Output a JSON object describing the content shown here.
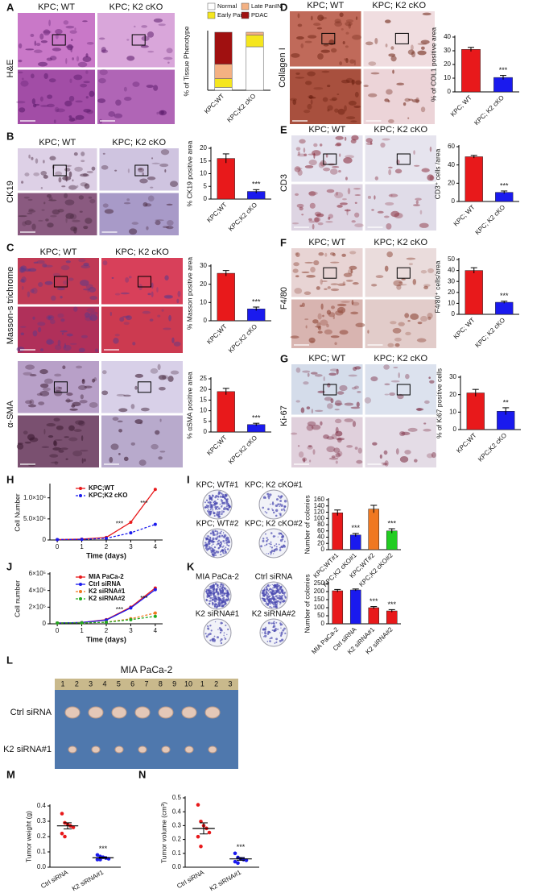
{
  "panel_labels": [
    "A",
    "B",
    "C",
    "D",
    "E",
    "F",
    "G",
    "H",
    "I",
    "J",
    "K",
    "L",
    "M",
    "N"
  ],
  "image_panels": [
    {
      "columns": [
        "KPC; WT",
        "KPC; K2 cKO"
      ],
      "rows": [
        "H&E"
      ]
    },
    {
      "columns": [
        "KPC; WT",
        "KPC; K2 cKO"
      ],
      "rows": [
        "CK19"
      ]
    },
    {
      "columns": [
        "KPC; WT",
        "KPC; K2 cKO"
      ],
      "rows": [
        "Masson-s trichrome"
      ]
    },
    {
      "rows": [
        "α-SMA"
      ]
    },
    {
      "columns": [
        "KPC; WT",
        "KPC; K2 cKO"
      ],
      "rows": [
        "Collagen I"
      ]
    },
    {
      "columns": [
        "KPC; WT",
        "KPC; K2 cKO"
      ],
      "rows": [
        "CD3"
      ]
    },
    {
      "columns": [
        "KPC; WT",
        "KPC; K2 cKO"
      ],
      "rows": [
        "F4/80"
      ]
    },
    {
      "columns": [
        "KPC; WT",
        "KPC; K2 cKO"
      ],
      "rows": [
        "Ki-67"
      ]
    },
    {
      "columns": [
        "KPC; WT#1",
        "KPC; K2 cKO#1",
        "KPC; WT#2",
        "KPC; K2 cKO#2"
      ]
    },
    {
      "columns": [
        "MIA PaCa-2",
        "Ctrl siRNA",
        "K2 siRNA#1",
        "K2 siRNA#2"
      ]
    },
    {
      "title": "MIA PaCa-2",
      "rows": [
        "Ctrl siRNA",
        "K2 siRNA#1"
      ],
      "ruler": [
        "1",
        "2",
        "3",
        "4",
        "5",
        "6",
        "7",
        "8",
        "9",
        "10",
        "1",
        "2",
        "3"
      ]
    }
  ],
  "chart_data": [
    {
      "type": "stacked_bar",
      "categories": [
        "KPC;WT",
        "KPC;K2 cKO"
      ],
      "y_label": "% of Tissue Phenotype",
      "ylim": [
        0,
        100
      ],
      "series": [
        {
          "name": "Normal",
          "color": "#ffffff",
          "values": [
            5,
            75
          ]
        },
        {
          "name": "Early PanIN",
          "color": "#f5e61e",
          "values": [
            15,
            20
          ]
        },
        {
          "name": "Late PanIN",
          "color": "#f4b183",
          "values": [
            25,
            5
          ]
        },
        {
          "name": "PDAC",
          "color": "#a01010",
          "values": [
            55,
            0
          ]
        }
      ]
    },
    {
      "type": "bar",
      "categories": [
        "KPC;WT",
        "KPC;K2 cKO"
      ],
      "values": [
        16,
        3
      ],
      "errors": [
        1.8,
        0.7
      ],
      "colors": [
        "#e8191b",
        "#1a1aee"
      ],
      "annotations": [
        null,
        "***"
      ],
      "y_label": "% CK19 positive area",
      "ylim": [
        0,
        20
      ],
      "yticks": [
        0,
        5,
        10,
        15,
        20
      ]
    },
    {
      "type": "bar",
      "categories": [
        "KPC;WT",
        "KPC;K2 cKO"
      ],
      "values": [
        26,
        6.5
      ],
      "errors": [
        1.5,
        1
      ],
      "colors": [
        "#e8191b",
        "#1a1aee"
      ],
      "annotations": [
        null,
        "***"
      ],
      "y_label": "% Masson positive area",
      "ylim": [
        0,
        30
      ],
      "yticks": [
        0,
        10,
        20,
        30
      ]
    },
    {
      "type": "bar",
      "categories": [
        "KPC;WT",
        "KPC;K2 cKO"
      ],
      "values": [
        19,
        3.5
      ],
      "errors": [
        1.5,
        0.6
      ],
      "colors": [
        "#e8191b",
        "#1a1aee"
      ],
      "annotations": [
        null,
        "***"
      ],
      "y_label": "% αSMA positive area",
      "ylim": [
        0,
        25
      ],
      "yticks": [
        0,
        5,
        10,
        15,
        20,
        25
      ]
    },
    {
      "type": "bar",
      "categories": [
        "KPC; WT",
        "KPC; K2 cKO"
      ],
      "values": [
        31,
        10.5
      ],
      "errors": [
        1.5,
        1.5
      ],
      "colors": [
        "#e8191b",
        "#1a1aee"
      ],
      "annotations": [
        null,
        "***"
      ],
      "y_label": "% of COL1 positive area",
      "ylim": [
        0,
        40
      ],
      "yticks": [
        0,
        10,
        20,
        30,
        40
      ]
    },
    {
      "type": "bar",
      "categories": [
        "KPC; WT",
        "KPC; K2 cKO"
      ],
      "values": [
        49,
        10
      ],
      "errors": [
        1.5,
        1.5
      ],
      "colors": [
        "#e8191b",
        "#1a1aee"
      ],
      "annotations": [
        null,
        "***"
      ],
      "y_label": "CD3⁺ cells /area",
      "ylim": [
        0,
        60
      ],
      "yticks": [
        0,
        20,
        40,
        60
      ]
    },
    {
      "type": "bar",
      "categories": [
        "KPC; WT",
        "KPC; K2 cKO"
      ],
      "values": [
        40,
        11
      ],
      "errors": [
        2.5,
        1
      ],
      "colors": [
        "#e8191b",
        "#1a1aee"
      ],
      "annotations": [
        null,
        "***"
      ],
      "y_label": "F4/80⁺ cells/area",
      "ylim": [
        0,
        50
      ],
      "yticks": [
        0,
        10,
        20,
        30,
        40,
        50
      ]
    },
    {
      "type": "bar",
      "categories": [
        "KPC;WT",
        "KPC;K2 cKO"
      ],
      "values": [
        21,
        10.5
      ],
      "errors": [
        2,
        2
      ],
      "colors": [
        "#e8191b",
        "#1a1aee"
      ],
      "annotations": [
        null,
        "**"
      ],
      "y_label": "% of Ki67 positive cells",
      "ylim": [
        0,
        30
      ],
      "yticks": [
        0,
        10,
        20,
        30
      ]
    },
    {
      "type": "line",
      "x": [
        0,
        1,
        2,
        3,
        4
      ],
      "xlim": [
        -0.3,
        4.3
      ],
      "xticks": [
        0,
        1,
        2,
        3,
        4
      ],
      "x_label": "Time (days)",
      "y_label": "Cell Number",
      "ylim": [
        0,
        1300000
      ],
      "yticks": [
        0,
        {
          "value": 500000,
          "label": "5.0×10⁵"
        },
        {
          "value": 1000000,
          "label": "1.0×10⁶"
        }
      ],
      "series": [
        {
          "name": "KPC;WT",
          "color": "#e8191b",
          "values": [
            10000,
            20000,
            60000,
            420000,
            1200000
          ]
        },
        {
          "name": "KPC;K2 cKO",
          "color": "#1a1aee",
          "dashed": true,
          "values": [
            10000,
            15000,
            40000,
            170000,
            370000
          ]
        }
      ],
      "annotations": [
        {
          "x": 3,
          "text": "***"
        },
        {
          "x": 4,
          "text": "***"
        }
      ]
    },
    {
      "type": "bar",
      "categories": [
        "KPC;WT#1",
        "KPC;K2 cKO#1",
        "KPC;WT#2",
        "KPC;K2 cKO#2"
      ],
      "values": [
        118,
        47,
        130,
        60
      ],
      "errors": [
        9,
        5,
        12,
        7
      ],
      "colors": [
        "#e8191b",
        "#1a1aee",
        "#f07820",
        "#22cc22"
      ],
      "annotations": [
        null,
        "***",
        null,
        "***"
      ],
      "y_label": "Number of colonies",
      "ylim": [
        0,
        160
      ],
      "yticks": [
        0,
        20,
        40,
        60,
        80,
        100,
        120,
        140,
        160
      ]
    },
    {
      "type": "line",
      "x": [
        0,
        1,
        2,
        3,
        4
      ],
      "xlim": [
        -0.3,
        4.3
      ],
      "xticks": [
        0,
        1,
        2,
        3,
        4
      ],
      "x_label": "Time (days)",
      "y_label": "Cell number",
      "ylim": [
        0,
        600000
      ],
      "yticks": [
        0,
        {
          "value": 200000,
          "label": "2×10⁵"
        },
        {
          "value": 400000,
          "label": "4×10⁵"
        },
        {
          "value": 600000,
          "label": "6×10⁵"
        }
      ],
      "series": [
        {
          "name": "MIA PaCa-2",
          "color": "#e8191b",
          "values": [
            10000,
            15000,
            50000,
            200000,
            430000
          ]
        },
        {
          "name": "Ctrl siRNA",
          "color": "#1a1aee",
          "values": [
            10000,
            15000,
            45000,
            190000,
            410000
          ]
        },
        {
          "name": "K2 siRNA#1",
          "color": "#f07820",
          "dashed": true,
          "values": [
            10000,
            12000,
            20000,
            60000,
            130000
          ]
        },
        {
          "name": "K2 siRNA#2",
          "color": "#22aa22",
          "dashed": true,
          "values": [
            10000,
            11000,
            18000,
            50000,
            90000
          ]
        }
      ],
      "annotations": [
        {
          "x": 3,
          "text": "***"
        },
        {
          "x": 4,
          "text": "***"
        }
      ]
    },
    {
      "type": "bar",
      "categories": [
        "MIA PaCa-2",
        "Ctrl siRNA",
        "K2 siRNA#1",
        "K2 siRNA#2"
      ],
      "values": [
        205,
        210,
        100,
        80
      ],
      "errors": [
        8,
        6,
        7,
        8
      ],
      "colors": [
        "#e8191b",
        "#1a1aee",
        "#e8191b",
        "#e8191b"
      ],
      "annotations": [
        null,
        null,
        "***",
        "***"
      ],
      "y_label": "Number of colonies",
      "ylim": [
        0,
        250
      ],
      "yticks": [
        0,
        50,
        100,
        150,
        200,
        250
      ]
    },
    {
      "type": "dot",
      "categories": [
        "Ctrl siRNA",
        "K2 siRNA#1"
      ],
      "colors": [
        "#e8191b",
        "#1a1aee"
      ],
      "points": [
        [
          0.35,
          0.29,
          0.28,
          0.27,
          0.26,
          0.22,
          0.2
        ],
        [
          0.08,
          0.07,
          0.065,
          0.06,
          0.055,
          0.05,
          0.05
        ]
      ],
      "means": [
        0.27,
        0.062
      ],
      "errors": [
        0.02,
        0.004
      ],
      "annotations": [
        null,
        "***"
      ],
      "y_label": "Tumor weight (g)",
      "ylim": [
        0,
        0.4
      ],
      "yticks": [
        {
          "value": 0,
          "label": "0.0"
        },
        0.1,
        0.2,
        0.3,
        0.4
      ]
    },
    {
      "type": "dot",
      "categories": [
        "Ctrl siRNA",
        "K2 siRNA#1"
      ],
      "colors": [
        "#e8191b",
        "#1a1aee"
      ],
      "points": [
        [
          0.45,
          0.33,
          0.3,
          0.28,
          0.25,
          0.22,
          0.15
        ],
        [
          0.1,
          0.07,
          0.06,
          0.055,
          0.05,
          0.04,
          0.03
        ]
      ],
      "means": [
        0.28,
        0.06
      ],
      "errors": [
        0.04,
        0.01
      ],
      "annotations": [
        null,
        "***"
      ],
      "y_label": "Tumor volume (cm³)",
      "ylim": [
        0,
        0.5
      ],
      "yticks": [
        {
          "value": 0,
          "label": "0.0"
        },
        0.1,
        0.2,
        0.3,
        0.4,
        0.5
      ]
    }
  ]
}
